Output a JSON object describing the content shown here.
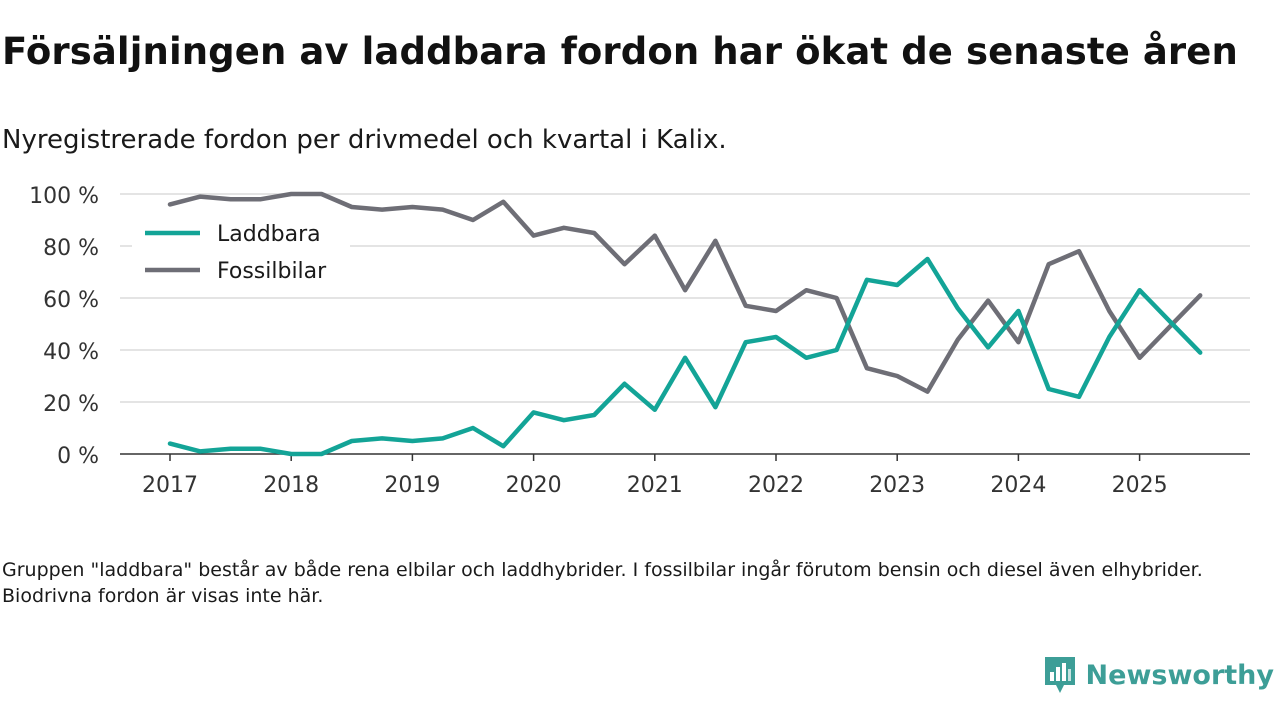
{
  "title": "Försäljningen av laddbara fordon har ökat de senaste åren",
  "subtitle": "Nyregistrerade fordon per drivmedel och kvartal i Kalix.",
  "note": "Gruppen \"laddbara\" består av både rena elbilar och laddhybrider. I fossilbilar ingår förutom bensin och diesel även elhybrider. Biodrivna fordon är visas inte här.",
  "brand": {
    "name": "Newsworthy",
    "color": "#3d9e97"
  },
  "chart_data": {
    "type": "line",
    "title": "Försäljningen av laddbara fordon har ökat de senaste åren",
    "xlabel": "",
    "ylabel": "",
    "ylim": [
      0,
      100
    ],
    "yticks": [
      0,
      20,
      40,
      60,
      80,
      100
    ],
    "ytick_labels": [
      "0 %",
      "20 %",
      "40 %",
      "60 %",
      "80 %",
      "100 %"
    ],
    "xtick_labels": [
      "2017",
      "2018",
      "2019",
      "2020",
      "2021",
      "2022",
      "2023",
      "2024",
      "2025"
    ],
    "x": [
      "2017 Q1",
      "2017 Q2",
      "2017 Q3",
      "2017 Q4",
      "2018 Q1",
      "2018 Q2",
      "2018 Q3",
      "2018 Q4",
      "2019 Q1",
      "2019 Q2",
      "2019 Q3",
      "2019 Q4",
      "2020 Q1",
      "2020 Q2",
      "2020 Q3",
      "2020 Q4",
      "2021 Q1",
      "2021 Q2",
      "2021 Q3",
      "2021 Q4",
      "2022 Q1",
      "2022 Q2",
      "2022 Q3",
      "2022 Q4",
      "2023 Q1",
      "2023 Q2",
      "2023 Q3",
      "2023 Q4",
      "2024 Q1",
      "2024 Q2",
      "2024 Q3",
      "2024 Q4",
      "2025 Q1",
      "2025 Q2",
      "2025 Q3"
    ],
    "grid": true,
    "legend_position": "top-left",
    "series": [
      {
        "name": "Laddbara",
        "color": "#13a497",
        "values": [
          4,
          1,
          2,
          2,
          0,
          0,
          5,
          6,
          5,
          6,
          10,
          3,
          16,
          13,
          15,
          27,
          17,
          37,
          18,
          43,
          45,
          37,
          40,
          67,
          65,
          75,
          56,
          41,
          55,
          25,
          22,
          45,
          63,
          51,
          39
        ]
      },
      {
        "name": "Fossilbilar",
        "color": "#6e6e76",
        "values": [
          96,
          99,
          98,
          98,
          100,
          100,
          95,
          94,
          95,
          94,
          90,
          97,
          84,
          87,
          85,
          73,
          84,
          63,
          82,
          57,
          55,
          63,
          60,
          33,
          30,
          24,
          44,
          59,
          43,
          73,
          78,
          55,
          37,
          49,
          61
        ]
      }
    ]
  }
}
